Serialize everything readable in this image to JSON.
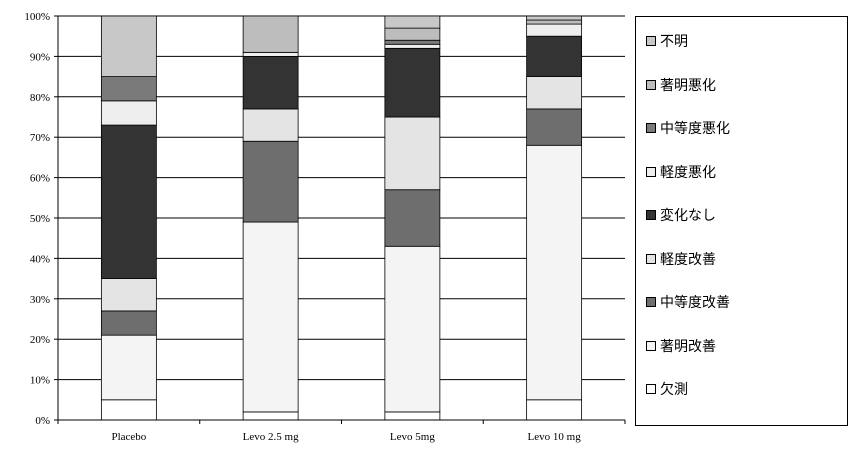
{
  "chart_data": {
    "type": "bar",
    "stacked": true,
    "categories": [
      "Placebo",
      "Levo 2.5 mg",
      "Levo 5mg",
      "Levo 10 mg"
    ],
    "ylim": [
      0,
      100
    ],
    "yticks": [
      "0%",
      "10%",
      "20%",
      "30%",
      "40%",
      "50%",
      "60%",
      "70%",
      "80%",
      "90%",
      "100%"
    ],
    "grid": true,
    "legend_position": "right",
    "series": [
      {
        "name": "欠測",
        "color": "#ffffff",
        "values": [
          5,
          2,
          2,
          5
        ]
      },
      {
        "name": "著明改善",
        "color": "#f4f4f4",
        "values": [
          16,
          47,
          41,
          63
        ]
      },
      {
        "name": "中等度改善",
        "color": "#6e6e6e",
        "values": [
          6,
          20,
          14,
          9
        ]
      },
      {
        "name": "軽度改善",
        "color": "#e4e4e4",
        "values": [
          8,
          8,
          18,
          8
        ]
      },
      {
        "name": "変化なし",
        "color": "#333333",
        "values": [
          38,
          13,
          17,
          10
        ]
      },
      {
        "name": "軽度悪化",
        "color": "#eeeeee",
        "values": [
          6,
          1,
          1,
          3
        ]
      },
      {
        "name": "中等度悪化",
        "color": "#7a7a7a",
        "values": [
          6,
          0,
          1,
          0
        ]
      },
      {
        "name": "著明悪化",
        "color": "#bdbdbd",
        "values": [
          0,
          9,
          3,
          1
        ]
      },
      {
        "name": "不明",
        "color": "#c8c8c8",
        "values": [
          15,
          0,
          3,
          1
        ]
      }
    ]
  },
  "legend_order": [
    8,
    7,
    6,
    5,
    4,
    3,
    2,
    1,
    0
  ]
}
